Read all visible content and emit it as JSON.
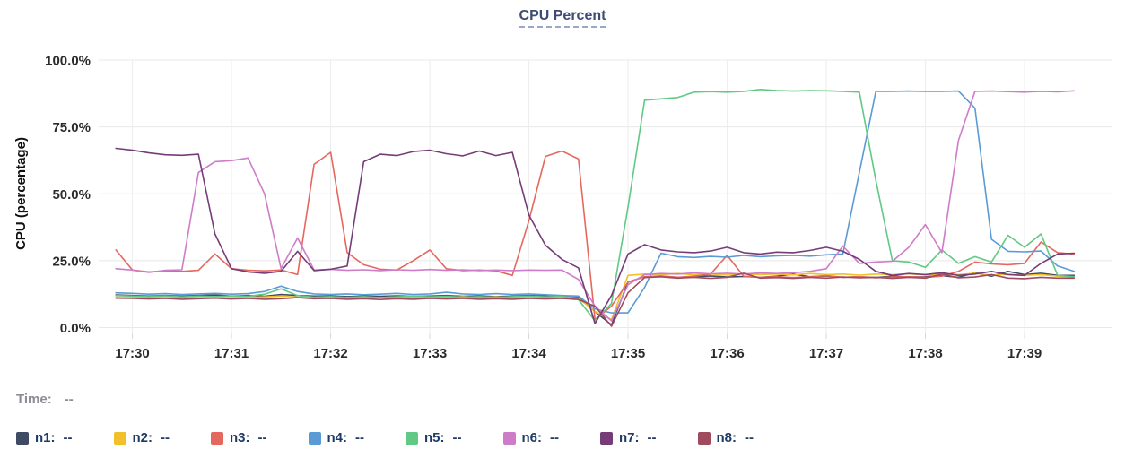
{
  "header": {
    "title": "CPU Percent"
  },
  "status": {
    "time_label": "Time:",
    "time_value": "--"
  },
  "legend": [
    {
      "label": "n1:",
      "value": "--",
      "color": "#3f4a63"
    },
    {
      "label": "n2:",
      "value": "--",
      "color": "#f2c029"
    },
    {
      "label": "n3:",
      "value": "--",
      "color": "#e4685e"
    },
    {
      "label": "n4:",
      "value": "--",
      "color": "#5b9bd5"
    },
    {
      "label": "n5:",
      "value": "--",
      "color": "#60c983"
    },
    {
      "label": "n6:",
      "value": "--",
      "color": "#cf7cc8"
    },
    {
      "label": "n7:",
      "value": "--",
      "color": "#753c78"
    },
    {
      "label": "n8:",
      "value": "--",
      "color": "#a04a5e"
    }
  ],
  "chart_data": {
    "type": "line",
    "title": "CPU Percent",
    "xlabel": "",
    "ylabel": "CPU (percentage)",
    "ylim": [
      0,
      100
    ],
    "grid": true,
    "legend_position": "bottom",
    "y_ticks": [
      "0.0%",
      "25.0%",
      "50.0%",
      "75.0%",
      "100.0%"
    ],
    "y_tick_values": [
      0,
      25,
      50,
      75,
      100
    ],
    "x_ticks": [
      "17:30",
      "17:31",
      "17:32",
      "17:33",
      "17:34",
      "17:35",
      "17:36",
      "17:37",
      "17:38",
      "17:39"
    ],
    "x_start": "17:29:50",
    "x_step_seconds": 10,
    "series": [
      {
        "name": "n1",
        "color": "#3f4a63",
        "values": [
          12.2,
          12.0,
          11.8,
          12.0,
          11.8,
          12.0,
          12.2,
          11.8,
          12.0,
          11.7,
          12.4,
          12.0,
          11.8,
          11.9,
          11.6,
          11.8,
          11.7,
          11.9,
          11.7,
          11.8,
          12.0,
          11.7,
          11.9,
          11.6,
          11.8,
          12.0,
          11.8,
          11.5,
          11.3,
          6.0,
          1.0,
          17.0,
          19.0,
          19.2,
          18.8,
          19.0,
          19.3,
          18.9,
          19.1,
          18.8,
          19.2,
          20.0,
          19.0,
          19.3,
          18.8,
          19.0,
          18.7,
          19.2,
          18.9,
          19.0,
          19.4,
          18.8,
          20.5,
          19.2,
          21.0,
          19.8,
          20.3,
          19.5,
          19.5
        ]
      },
      {
        "name": "n2",
        "color": "#f2c029",
        "values": [
          11.4,
          11.3,
          11.2,
          11.5,
          11.3,
          11.6,
          11.4,
          11.6,
          11.3,
          11.5,
          11.8,
          11.4,
          11.3,
          11.5,
          11.2,
          11.4,
          11.2,
          11.5,
          11.3,
          11.5,
          11.3,
          11.6,
          11.3,
          11.5,
          11.2,
          11.5,
          11.3,
          11.5,
          11.0,
          6.0,
          3.0,
          19.5,
          20.0,
          19.8,
          20.2,
          19.7,
          20.0,
          19.6,
          20.1,
          19.8,
          20.0,
          19.7,
          20.2,
          19.8,
          20.0,
          19.6,
          20.0,
          19.8,
          20.1,
          19.7,
          20.0,
          19.8,
          20.3,
          19.6,
          19.9,
          19.5,
          19.8,
          19.2,
          19.0
        ]
      },
      {
        "name": "n3",
        "color": "#e4685e",
        "values": [
          29.0,
          21.5,
          20.8,
          21.2,
          21.0,
          21.4,
          27.5,
          22.0,
          21.4,
          21.2,
          21.5,
          19.8,
          61.0,
          65.5,
          28.0,
          23.5,
          21.8,
          21.5,
          25.0,
          29.0,
          22.0,
          21.3,
          21.5,
          21.2,
          19.5,
          40.0,
          64.0,
          66.0,
          63.0,
          3.0,
          8.0,
          17.0,
          19.0,
          19.3,
          18.8,
          19.2,
          20.0,
          27.0,
          19.2,
          18.8,
          19.0,
          18.7,
          19.0,
          19.4,
          18.8,
          19.0,
          18.6,
          18.9,
          19.0,
          18.8,
          19.2,
          21.0,
          24.5,
          23.8,
          23.5,
          24.0,
          32.0,
          28.0,
          27.5
        ]
      },
      {
        "name": "n4",
        "color": "#5b9bd5",
        "values": [
          13.0,
          12.8,
          12.5,
          12.7,
          12.4,
          12.6,
          12.8,
          12.5,
          12.7,
          13.5,
          15.5,
          13.5,
          12.6,
          12.4,
          12.6,
          12.3,
          12.5,
          12.8,
          12.4,
          12.6,
          13.2,
          12.6,
          12.4,
          12.7,
          12.4,
          12.6,
          12.3,
          12.0,
          11.8,
          7.0,
          5.5,
          5.5,
          15.0,
          27.8,
          26.5,
          26.2,
          26.6,
          26.3,
          27.0,
          26.5,
          26.8,
          27.0,
          26.7,
          27.2,
          27.5,
          58.0,
          88.3,
          88.3,
          88.4,
          88.3,
          88.3,
          88.4,
          82.0,
          33.0,
          28.5,
          28.3,
          28.6,
          23.0,
          21.0
        ]
      },
      {
        "name": "n5",
        "color": "#60c983",
        "values": [
          12.0,
          11.8,
          11.6,
          11.9,
          11.5,
          11.8,
          11.6,
          11.9,
          11.7,
          12.5,
          14.5,
          12.0,
          11.4,
          11.6,
          11.3,
          11.6,
          11.2,
          11.5,
          11.8,
          11.5,
          11.7,
          11.4,
          11.6,
          11.3,
          11.6,
          11.8,
          11.5,
          11.7,
          10.5,
          2.5,
          9.0,
          45.0,
          85.0,
          85.5,
          86.0,
          88.0,
          88.2,
          88.0,
          88.3,
          89.0,
          88.6,
          88.4,
          88.6,
          88.5,
          88.3,
          88.0,
          55.0,
          25.0,
          24.5,
          22.5,
          29.0,
          24.0,
          26.5,
          24.5,
          34.5,
          30.0,
          35.0,
          19.5,
          19.0
        ]
      },
      {
        "name": "n6",
        "color": "#cf7cc8",
        "values": [
          22.0,
          21.5,
          20.6,
          21.4,
          21.6,
          58.0,
          62.0,
          62.4,
          63.4,
          50.0,
          22.0,
          33.5,
          21.5,
          21.8,
          21.4,
          21.6,
          21.3,
          21.6,
          21.4,
          21.7,
          21.4,
          21.6,
          21.3,
          21.5,
          21.3,
          21.5,
          21.4,
          21.5,
          18.0,
          8.0,
          2.5,
          16.0,
          19.8,
          20.2,
          20.0,
          20.4,
          20.1,
          20.3,
          20.0,
          20.4,
          20.2,
          20.5,
          21.0,
          22.0,
          30.5,
          24.0,
          24.5,
          24.8,
          30.0,
          38.5,
          28.0,
          70.0,
          88.3,
          88.4,
          88.2,
          88.0,
          88.3,
          88.1,
          88.5
        ]
      },
      {
        "name": "n7",
        "color": "#753c78",
        "values": [
          67.0,
          66.3,
          65.3,
          64.6,
          64.4,
          64.8,
          35.0,
          22.0,
          20.8,
          20.3,
          21.0,
          28.5,
          21.3,
          21.8,
          23.0,
          62.0,
          64.8,
          64.3,
          65.8,
          66.3,
          65.0,
          64.2,
          66.0,
          64.3,
          65.5,
          42.0,
          30.8,
          25.5,
          22.3,
          1.5,
          12.0,
          27.5,
          31.0,
          29.0,
          28.3,
          28.0,
          28.6,
          30.0,
          28.0,
          27.5,
          28.2,
          28.0,
          28.8,
          30.0,
          28.5,
          25.5,
          21.0,
          19.5,
          20.2,
          19.8,
          20.5,
          19.5,
          20.0,
          21.0,
          19.8,
          19.5,
          24.0,
          27.5,
          27.8
        ]
      },
      {
        "name": "n8",
        "color": "#a04a5e",
        "values": [
          11.0,
          10.9,
          10.7,
          10.9,
          10.6,
          10.8,
          11.0,
          10.7,
          10.9,
          10.6,
          10.8,
          11.2,
          10.8,
          10.9,
          10.6,
          10.8,
          10.5,
          10.8,
          10.6,
          10.9,
          10.7,
          10.9,
          10.6,
          10.8,
          10.6,
          10.9,
          10.7,
          10.9,
          10.5,
          8.0,
          0.5,
          13.0,
          18.7,
          19.0,
          18.5,
          18.8,
          18.4,
          18.8,
          20.3,
          18.5,
          18.7,
          18.4,
          18.8,
          18.5,
          18.9,
          18.6,
          18.8,
          18.4,
          18.8,
          18.5,
          20.0,
          18.6,
          18.9,
          19.8,
          18.5,
          18.3,
          18.8,
          18.5,
          18.5
        ]
      }
    ]
  }
}
